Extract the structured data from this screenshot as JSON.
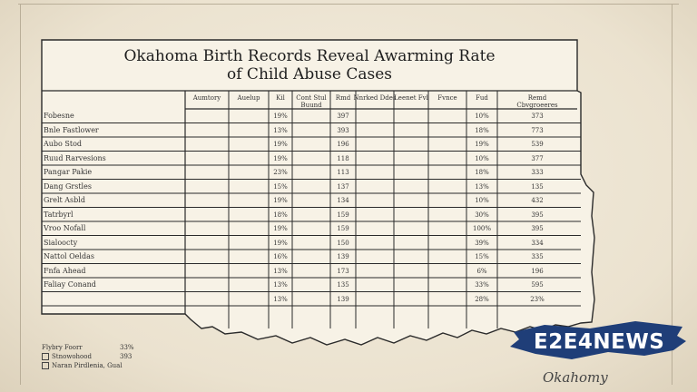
{
  "title": {
    "line1": "Okahoma Birth Records Reveal Awarming Rate",
    "line2": "of Child Abuse Cases"
  },
  "table": {
    "columns": [
      "Aumtory",
      "Auelup",
      "Kil",
      "Cont Stul Buund",
      "Rmd",
      "Nnrked Ddes",
      "Leenet Fvl",
      "Fvnce",
      "Fud",
      "Remd Cbvgroeeres"
    ],
    "rows": [
      {
        "label": "Fobesne",
        "c1": "19%",
        "c2": "397",
        "c3": "10%",
        "c4": "373"
      },
      {
        "label": "Bnle Fastlower",
        "c1": "13%",
        "c2": "393",
        "c3": "18%",
        "c4": "773"
      },
      {
        "label": "Aubo Stod",
        "c1": "19%",
        "c2": "196",
        "c3": "19%",
        "c4": "539"
      },
      {
        "label": "Ruud Rarvesions",
        "c1": "19%",
        "c2": "118",
        "c3": "10%",
        "c4": "377"
      },
      {
        "label": "Pangar Pakie",
        "c1": "23%",
        "c2": "113",
        "c3": "18%",
        "c4": "333"
      },
      {
        "label": "Dang Grstles",
        "c1": "15%",
        "c2": "137",
        "c3": "13%",
        "c4": "135"
      },
      {
        "label": "Grelt Asbld",
        "c1": "19%",
        "c2": "134",
        "c3": "10%",
        "c4": "432"
      },
      {
        "label": "Tatrbyrl",
        "c1": "18%",
        "c2": "159",
        "c3": "30%",
        "c4": "395"
      },
      {
        "label": "Vroo Nofall",
        "c1": "19%",
        "c2": "159",
        "c3": "100%",
        "c4": "395"
      },
      {
        "label": "Sialoocty",
        "c1": "19%",
        "c2": "150",
        "c3": "39%",
        "c4": "334"
      },
      {
        "label": "Nattol Oeldas",
        "c1": "16%",
        "c2": "139",
        "c3": "15%",
        "c4": "335"
      },
      {
        "label": "Fnfa Ahead",
        "c1": "13%",
        "c2": "173",
        "c3": "6%",
        "c4": "196"
      },
      {
        "label": "Faliay Conand",
        "c1": "13%",
        "c2": "135",
        "c3": "33%",
        "c4": "595"
      },
      {
        "label": "",
        "c1": "13%",
        "c2": "139",
        "c3": "28%",
        "c4": "23%"
      }
    ]
  },
  "legend": [
    {
      "label": "Flybry Foorr",
      "value": "33%"
    },
    {
      "label": "Stnowohood",
      "value": "393"
    },
    {
      "label": "Naran Pirdlenia, Gual",
      "value": ""
    }
  ],
  "logo": {
    "text": "E2E4NEWS",
    "color": "#1f3e78"
  },
  "signature": "Okahomy"
}
